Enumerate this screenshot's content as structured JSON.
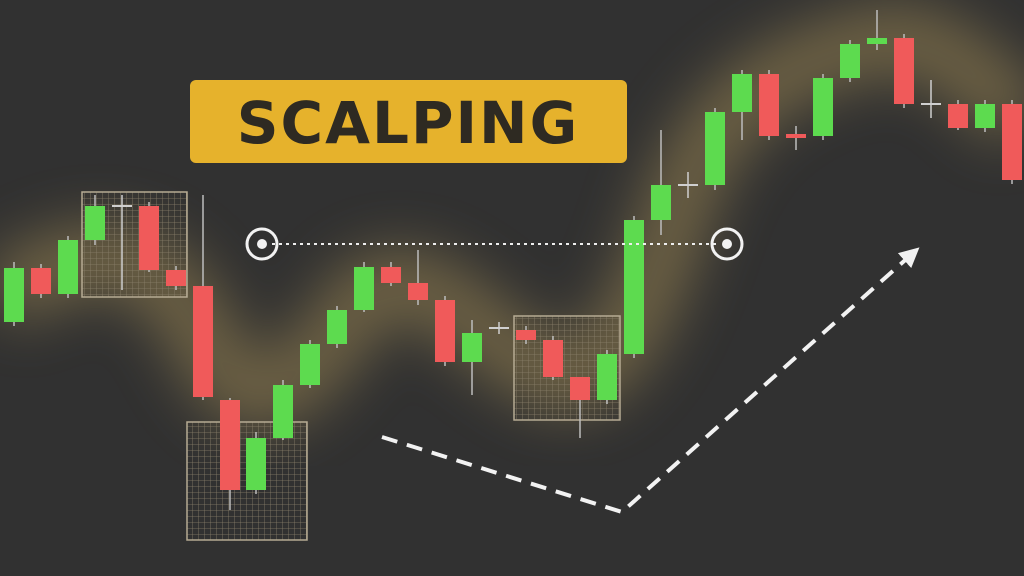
{
  "title": "SCALPING"
}
